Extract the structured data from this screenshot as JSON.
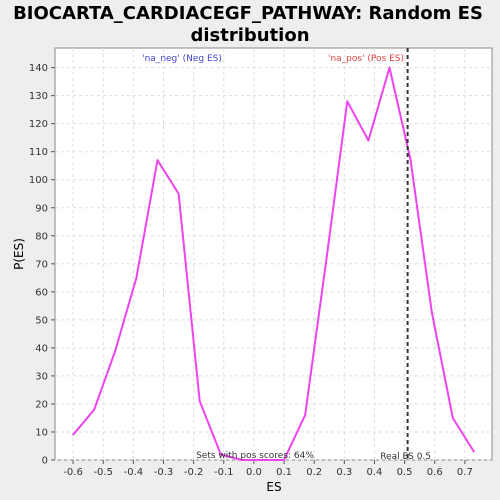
{
  "chart_data": {
    "type": "line",
    "title_line1": "BIOCARTA_CARDIACEGF_PATHWAY: Random ES",
    "title_line2": "distribution",
    "xlabel": "ES",
    "ylabel": "P(ES)",
    "xlim": [
      -0.66,
      0.79
    ],
    "ylim": [
      0,
      147
    ],
    "xticks": [
      -0.6,
      -0.5,
      -0.4,
      -0.3,
      -0.2,
      -0.1,
      0.0,
      0.1,
      0.2,
      0.3,
      0.4,
      0.5,
      0.6,
      0.7
    ],
    "xtick_labels": [
      "-0.6",
      "-0.5",
      "-0.4",
      "-0.3",
      "-0.2",
      "-0.1",
      "0.0",
      "0.1",
      "0.2",
      "0.3",
      "0.4",
      "0.5",
      "0.6",
      "0.7"
    ],
    "yticks": [
      0,
      10,
      20,
      30,
      40,
      50,
      60,
      70,
      80,
      90,
      100,
      110,
      120,
      130,
      140
    ],
    "ytick_labels": [
      "0",
      "10",
      "20",
      "30",
      "40",
      "50",
      "60",
      "70",
      "80",
      "90",
      "100",
      "110",
      "120",
      "130",
      "140"
    ],
    "grid": true,
    "series": [
      {
        "name": "P(ES)",
        "color": "#ee44ee",
        "x": [
          -0.6,
          -0.53,
          -0.46,
          -0.39,
          -0.32,
          -0.25,
          -0.18,
          -0.11,
          -0.04,
          0.03,
          0.1,
          0.17,
          0.24,
          0.31,
          0.38,
          0.45,
          0.52,
          0.59,
          0.66,
          0.73
        ],
        "y": [
          9,
          18,
          39,
          65,
          107,
          95,
          21,
          2,
          0,
          0,
          0,
          16,
          71,
          128,
          114,
          140,
          107,
          53,
          15,
          3
        ]
      }
    ],
    "real_es": 0.51,
    "real_es_label": "Real ES 0.5",
    "real_es_color": "#333333",
    "neg_label": "'na_neg' (Neg ES)",
    "neg_color": "#4444cc",
    "pos_label": "'na_pos' (Pos ES)",
    "pos_color": "#dd4444",
    "pos_scores_label": "Sets with pos scores: 64%"
  }
}
